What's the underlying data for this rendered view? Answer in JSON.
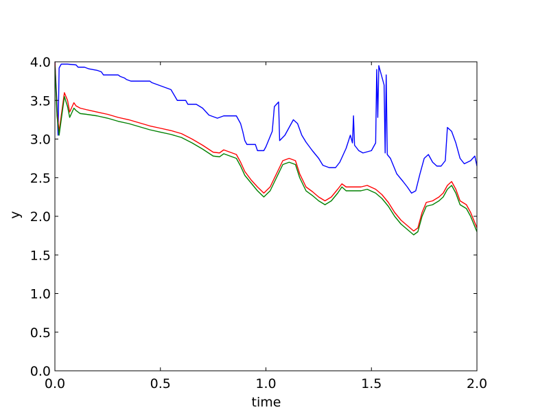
{
  "chart_data": {
    "type": "line",
    "title": "",
    "xlabel": "time",
    "ylabel": "y",
    "xlim": [
      0.0,
      2.0
    ],
    "ylim": [
      0.0,
      4.0
    ],
    "grid": false,
    "x_ticks": [
      "0.0",
      "0.5",
      "1.0",
      "1.5",
      "2.0"
    ],
    "y_ticks": [
      "0.0",
      "0.5",
      "1.0",
      "1.5",
      "2.0",
      "2.5",
      "3.0",
      "3.5",
      "4.0"
    ],
    "series": [
      {
        "color": "#0000ff",
        "points": [
          [
            0.0,
            4.0
          ],
          [
            0.01,
            3.45
          ],
          [
            0.015,
            3.05
          ],
          [
            0.02,
            3.92
          ],
          [
            0.03,
            3.97
          ],
          [
            0.06,
            3.97
          ],
          [
            0.1,
            3.96
          ],
          [
            0.11,
            3.93
          ],
          [
            0.14,
            3.93
          ],
          [
            0.16,
            3.91
          ],
          [
            0.2,
            3.89
          ],
          [
            0.22,
            3.87
          ],
          [
            0.23,
            3.83
          ],
          [
            0.3,
            3.83
          ],
          [
            0.31,
            3.81
          ],
          [
            0.33,
            3.79
          ],
          [
            0.34,
            3.77
          ],
          [
            0.36,
            3.75
          ],
          [
            0.45,
            3.75
          ],
          [
            0.46,
            3.73
          ],
          [
            0.48,
            3.71
          ],
          [
            0.5,
            3.69
          ],
          [
            0.52,
            3.67
          ],
          [
            0.55,
            3.64
          ],
          [
            0.58,
            3.5
          ],
          [
            0.62,
            3.5
          ],
          [
            0.63,
            3.45
          ],
          [
            0.67,
            3.45
          ],
          [
            0.7,
            3.4
          ],
          [
            0.73,
            3.31
          ],
          [
            0.77,
            3.27
          ],
          [
            0.8,
            3.3
          ],
          [
            0.86,
            3.3
          ],
          [
            0.88,
            3.2
          ],
          [
            0.89,
            3.1
          ],
          [
            0.9,
            2.98
          ],
          [
            0.91,
            2.93
          ],
          [
            0.95,
            2.93
          ],
          [
            0.96,
            2.85
          ],
          [
            0.99,
            2.85
          ],
          [
            1.0,
            2.9
          ],
          [
            1.03,
            3.1
          ],
          [
            1.04,
            3.42
          ],
          [
            1.06,
            3.48
          ],
          [
            1.065,
            2.98
          ],
          [
            1.09,
            3.05
          ],
          [
            1.11,
            3.15
          ],
          [
            1.13,
            3.25
          ],
          [
            1.15,
            3.2
          ],
          [
            1.17,
            3.05
          ],
          [
            1.19,
            2.96
          ],
          [
            1.22,
            2.85
          ],
          [
            1.25,
            2.75
          ],
          [
            1.27,
            2.66
          ],
          [
            1.3,
            2.63
          ],
          [
            1.33,
            2.63
          ],
          [
            1.35,
            2.7
          ],
          [
            1.38,
            2.88
          ],
          [
            1.4,
            3.05
          ],
          [
            1.41,
            2.95
          ],
          [
            1.415,
            3.3
          ],
          [
            1.42,
            2.92
          ],
          [
            1.44,
            2.85
          ],
          [
            1.46,
            2.82
          ],
          [
            1.5,
            2.85
          ],
          [
            1.52,
            2.95
          ],
          [
            1.525,
            3.9
          ],
          [
            1.53,
            3.28
          ],
          [
            1.535,
            3.95
          ],
          [
            1.55,
            3.8
          ],
          [
            1.56,
            3.7
          ],
          [
            1.565,
            2.82
          ],
          [
            1.57,
            3.83
          ],
          [
            1.575,
            2.8
          ],
          [
            1.59,
            2.75
          ],
          [
            1.62,
            2.55
          ],
          [
            1.65,
            2.45
          ],
          [
            1.67,
            2.38
          ],
          [
            1.69,
            2.3
          ],
          [
            1.71,
            2.33
          ],
          [
            1.73,
            2.55
          ],
          [
            1.75,
            2.75
          ],
          [
            1.77,
            2.8
          ],
          [
            1.79,
            2.7
          ],
          [
            1.81,
            2.65
          ],
          [
            1.83,
            2.65
          ],
          [
            1.85,
            2.72
          ],
          [
            1.86,
            3.15
          ],
          [
            1.88,
            3.1
          ],
          [
            1.9,
            2.95
          ],
          [
            1.92,
            2.75
          ],
          [
            1.94,
            2.68
          ],
          [
            1.97,
            2.72
          ],
          [
            1.99,
            2.78
          ],
          [
            2.0,
            2.65
          ]
        ]
      },
      {
        "color": "#ff0000",
        "points": [
          [
            0.0,
            4.0
          ],
          [
            0.01,
            3.35
          ],
          [
            0.02,
            3.1
          ],
          [
            0.03,
            3.3
          ],
          [
            0.045,
            3.6
          ],
          [
            0.06,
            3.5
          ],
          [
            0.07,
            3.35
          ],
          [
            0.09,
            3.47
          ],
          [
            0.1,
            3.43
          ],
          [
            0.12,
            3.4
          ],
          [
            0.15,
            3.38
          ],
          [
            0.2,
            3.35
          ],
          [
            0.25,
            3.32
          ],
          [
            0.3,
            3.28
          ],
          [
            0.35,
            3.25
          ],
          [
            0.4,
            3.21
          ],
          [
            0.45,
            3.17
          ],
          [
            0.5,
            3.14
          ],
          [
            0.55,
            3.11
          ],
          [
            0.6,
            3.07
          ],
          [
            0.65,
            3.0
          ],
          [
            0.7,
            2.92
          ],
          [
            0.75,
            2.83
          ],
          [
            0.78,
            2.82
          ],
          [
            0.8,
            2.86
          ],
          [
            0.83,
            2.83
          ],
          [
            0.86,
            2.8
          ],
          [
            0.88,
            2.7
          ],
          [
            0.9,
            2.58
          ],
          [
            0.93,
            2.47
          ],
          [
            0.96,
            2.38
          ],
          [
            0.99,
            2.3
          ],
          [
            1.02,
            2.38
          ],
          [
            1.05,
            2.55
          ],
          [
            1.08,
            2.72
          ],
          [
            1.11,
            2.75
          ],
          [
            1.14,
            2.72
          ],
          [
            1.16,
            2.55
          ],
          [
            1.19,
            2.38
          ],
          [
            1.22,
            2.32
          ],
          [
            1.25,
            2.25
          ],
          [
            1.28,
            2.2
          ],
          [
            1.31,
            2.25
          ],
          [
            1.34,
            2.35
          ],
          [
            1.36,
            2.42
          ],
          [
            1.38,
            2.38
          ],
          [
            1.4,
            2.38
          ],
          [
            1.45,
            2.38
          ],
          [
            1.48,
            2.4
          ],
          [
            1.52,
            2.35
          ],
          [
            1.55,
            2.28
          ],
          [
            1.58,
            2.18
          ],
          [
            1.61,
            2.05
          ],
          [
            1.64,
            1.95
          ],
          [
            1.67,
            1.88
          ],
          [
            1.7,
            1.81
          ],
          [
            1.72,
            1.85
          ],
          [
            1.74,
            2.05
          ],
          [
            1.76,
            2.18
          ],
          [
            1.79,
            2.2
          ],
          [
            1.82,
            2.25
          ],
          [
            1.84,
            2.3
          ],
          [
            1.86,
            2.4
          ],
          [
            1.88,
            2.45
          ],
          [
            1.9,
            2.35
          ],
          [
            1.92,
            2.2
          ],
          [
            1.95,
            2.15
          ],
          [
            1.97,
            2.05
          ],
          [
            2.0,
            1.85
          ]
        ]
      },
      {
        "color": "#008000",
        "points": [
          [
            0.0,
            3.95
          ],
          [
            0.01,
            3.3
          ],
          [
            0.02,
            3.05
          ],
          [
            0.03,
            3.25
          ],
          [
            0.045,
            3.55
          ],
          [
            0.06,
            3.42
          ],
          [
            0.07,
            3.28
          ],
          [
            0.09,
            3.4
          ],
          [
            0.1,
            3.37
          ],
          [
            0.12,
            3.33
          ],
          [
            0.15,
            3.32
          ],
          [
            0.2,
            3.3
          ],
          [
            0.25,
            3.27
          ],
          [
            0.3,
            3.23
          ],
          [
            0.35,
            3.2
          ],
          [
            0.4,
            3.16
          ],
          [
            0.45,
            3.12
          ],
          [
            0.5,
            3.09
          ],
          [
            0.55,
            3.06
          ],
          [
            0.6,
            3.02
          ],
          [
            0.65,
            2.95
          ],
          [
            0.7,
            2.87
          ],
          [
            0.75,
            2.78
          ],
          [
            0.78,
            2.77
          ],
          [
            0.8,
            2.81
          ],
          [
            0.83,
            2.78
          ],
          [
            0.86,
            2.75
          ],
          [
            0.88,
            2.65
          ],
          [
            0.9,
            2.53
          ],
          [
            0.93,
            2.43
          ],
          [
            0.96,
            2.33
          ],
          [
            0.99,
            2.25
          ],
          [
            1.02,
            2.33
          ],
          [
            1.05,
            2.5
          ],
          [
            1.08,
            2.67
          ],
          [
            1.11,
            2.7
          ],
          [
            1.14,
            2.67
          ],
          [
            1.16,
            2.5
          ],
          [
            1.19,
            2.33
          ],
          [
            1.22,
            2.27
          ],
          [
            1.25,
            2.2
          ],
          [
            1.28,
            2.15
          ],
          [
            1.31,
            2.2
          ],
          [
            1.34,
            2.3
          ],
          [
            1.36,
            2.38
          ],
          [
            1.38,
            2.33
          ],
          [
            1.4,
            2.33
          ],
          [
            1.45,
            2.33
          ],
          [
            1.48,
            2.35
          ],
          [
            1.52,
            2.3
          ],
          [
            1.55,
            2.23
          ],
          [
            1.58,
            2.13
          ],
          [
            1.61,
            2.0
          ],
          [
            1.64,
            1.9
          ],
          [
            1.67,
            1.83
          ],
          [
            1.7,
            1.76
          ],
          [
            1.72,
            1.8
          ],
          [
            1.74,
            2.0
          ],
          [
            1.76,
            2.13
          ],
          [
            1.79,
            2.15
          ],
          [
            1.82,
            2.2
          ],
          [
            1.84,
            2.25
          ],
          [
            1.86,
            2.35
          ],
          [
            1.88,
            2.4
          ],
          [
            1.9,
            2.3
          ],
          [
            1.92,
            2.15
          ],
          [
            1.95,
            2.1
          ],
          [
            1.97,
            2.0
          ],
          [
            2.0,
            1.8
          ]
        ]
      }
    ]
  }
}
